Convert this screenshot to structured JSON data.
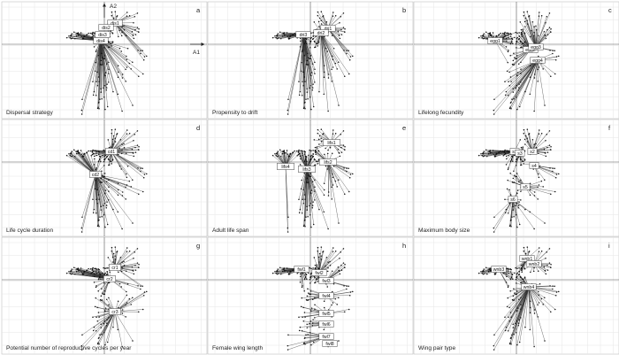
{
  "axes": {
    "x_label": "A1",
    "y_label": "A2"
  },
  "panels": [
    {
      "letter": "a",
      "title": "Dispersal strategy",
      "labels": [
        "dis1",
        "dis2",
        "dis3",
        "dis4"
      ]
    },
    {
      "letter": "b",
      "title": "Propensity to drift",
      "labels": [
        "dri1",
        "dri2",
        "dri3"
      ]
    },
    {
      "letter": "c",
      "title": "Lifelong fecundity",
      "labels": [
        "egg1",
        "egg2",
        "egg3",
        "egg4"
      ]
    },
    {
      "letter": "d",
      "title": "Life cycle duration",
      "labels": [
        "cd1",
        "cd2"
      ]
    },
    {
      "letter": "e",
      "title": "Adult life span",
      "labels": [
        "lifs1",
        "lifs2",
        "lifs3",
        "lifs4"
      ]
    },
    {
      "letter": "f",
      "title": "Maximum body size",
      "labels": [
        "s1",
        "s2",
        "s3",
        "s4",
        "s5",
        "s6"
      ]
    },
    {
      "letter": "g",
      "title": "Potential number of reproductive cycles per year",
      "labels": [
        "cr1",
        "cr2",
        "cr3"
      ]
    },
    {
      "letter": "h",
      "title": "Female wing length",
      "labels": [
        "fwl1",
        "fwl2",
        "fwl3",
        "fwl4",
        "fwl5",
        "fwl6",
        "fwl7",
        "fwl8"
      ]
    },
    {
      "letter": "i",
      "title": "Wing pair type",
      "labels": [
        "wnb1",
        "wnb2",
        "wnb3",
        "wnb4"
      ]
    }
  ]
}
